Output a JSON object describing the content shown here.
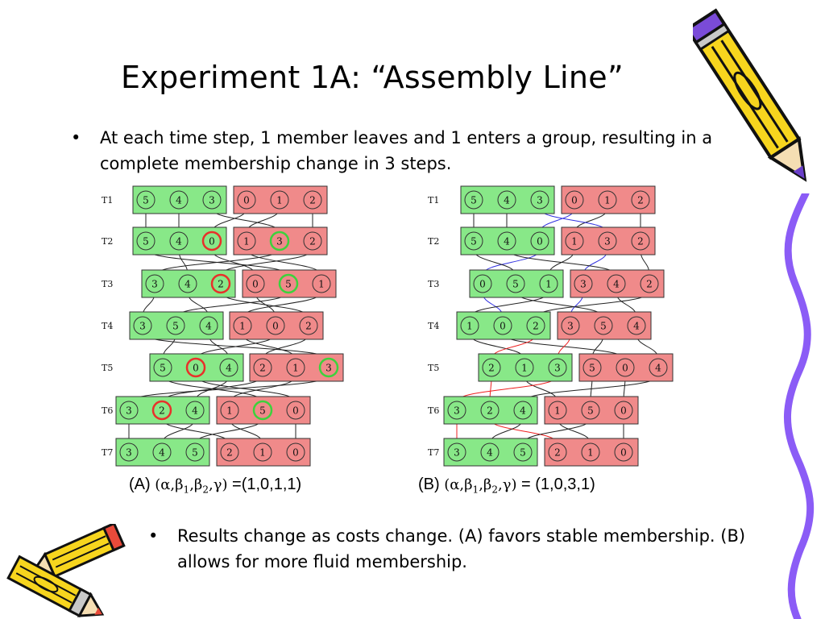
{
  "slide": {
    "title": "Experiment 1A: “Assembly Line”",
    "bullet1": "At each time step, 1 member leaves and 1 enters a group, resulting in a complete membership change in 3 steps.",
    "bullet2": "Results change as costs change.  (A) favors stable membership. (B) allows for more fluid membership.",
    "bullet_glyph": "•"
  },
  "captions": {
    "a": {
      "label": "(A)",
      "params": "(α,β",
      "sub1": "1",
      "mid": ",β",
      "sub2": "2",
      "end": ",γ)",
      "value": " =(1,0,1,1)"
    },
    "b": {
      "label": "(B)",
      "params": "(α,β",
      "sub1": "1",
      "mid": ",β",
      "sub2": "2",
      "end": ",γ)",
      "value": " = (1,0,3,1)"
    }
  },
  "colors": {
    "green_fill": "#88e888",
    "red_fill": "#f08a8a",
    "box_stroke": "#333333",
    "line": "#222222",
    "highlight_red": "#e8302a",
    "highlight_green": "#3cd23c",
    "blue_path": "#3030e0",
    "red_path": "#ee2020"
  },
  "diagram_a": {
    "time_labels": [
      "T1",
      "T2",
      "T3",
      "T4",
      "T5",
      "T6",
      "T7"
    ],
    "rows": [
      {
        "green": [
          "5",
          "4",
          "3"
        ],
        "red": [
          "0",
          "1",
          "2"
        ],
        "hl_green": [],
        "hl_red": []
      },
      {
        "green": [
          "5",
          "4",
          "0"
        ],
        "red": [
          "1",
          "3",
          "2"
        ],
        "hl_green": [
          2
        ],
        "hl_red": [
          1
        ]
      },
      {
        "red": [
          "0",
          "5",
          "1"
        ],
        "green": [
          "3",
          "4",
          "2"
        ],
        "hl_red": [
          1
        ],
        "hl_green": [
          2
        ]
      },
      {
        "red": [
          "1",
          "0",
          "2"
        ],
        "green": [
          "3",
          "5",
          "4"
        ],
        "hl_red": [],
        "hl_green": []
      },
      {
        "red": [
          "2",
          "1",
          "3"
        ],
        "green": [
          "5",
          "0",
          "4"
        ],
        "hl_red": [
          2
        ],
        "hl_green": [
          1
        ]
      },
      {
        "green": [
          "3",
          "2",
          "4"
        ],
        "red": [
          "1",
          "5",
          "0"
        ],
        "hl_green": [
          1
        ],
        "hl_red": [
          1
        ]
      },
      {
        "green": [
          "3",
          "4",
          "5"
        ],
        "red": [
          "2",
          "1",
          "0"
        ],
        "hl_green": [],
        "hl_red": []
      }
    ]
  },
  "diagram_b": {
    "time_labels": [
      "T1",
      "T2",
      "T3",
      "T4",
      "T5",
      "T6",
      "T7"
    ],
    "rows": [
      {
        "green": [
          "5",
          "4",
          "3"
        ],
        "red": [
          "0",
          "1",
          "2"
        ]
      },
      {
        "green": [
          "5",
          "4",
          "0"
        ],
        "red": [
          "1",
          "3",
          "2"
        ]
      },
      {
        "green": [
          "0",
          "5",
          "1"
        ],
        "red": [
          "3",
          "4",
          "2"
        ]
      },
      {
        "green": [
          "1",
          "0",
          "2"
        ],
        "red": [
          "3",
          "5",
          "4"
        ]
      },
      {
        "green": [
          "2",
          "1",
          "3"
        ],
        "red": [
          "5",
          "0",
          "4"
        ]
      },
      {
        "green": [
          "3",
          "2",
          "4"
        ],
        "red": [
          "1",
          "5",
          "0"
        ]
      },
      {
        "green": [
          "3",
          "4",
          "5"
        ],
        "red": [
          "2",
          "1",
          "0"
        ]
      }
    ]
  },
  "icons": {
    "pencil_top_right": "pencil-icon",
    "pencils_bottom_left": "pencils-icon",
    "border_right": "purple-squiggle-border"
  }
}
